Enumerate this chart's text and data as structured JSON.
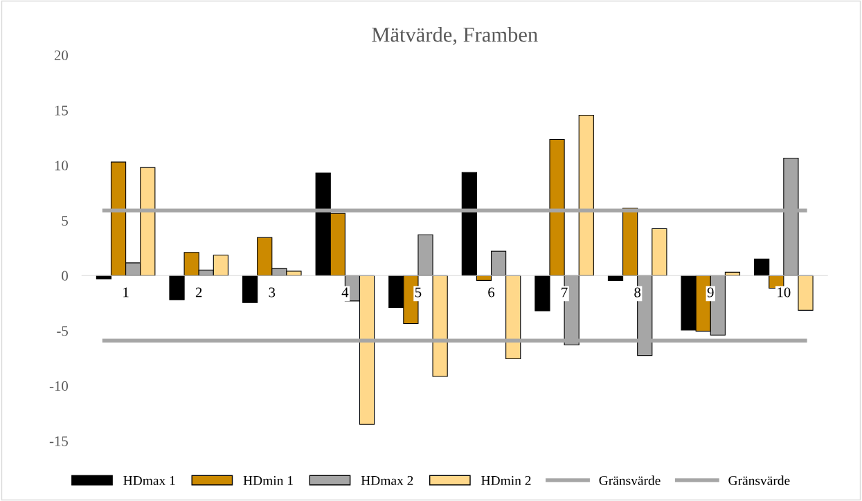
{
  "chart_data": {
    "type": "bar",
    "title": "Mätvärde, Framben",
    "categories": [
      "1",
      "2",
      "3",
      "4",
      "5",
      "6",
      "7",
      "8",
      "9",
      "10"
    ],
    "series": [
      {
        "name": "HDmax 1",
        "color": "#000000",
        "values": [
          -0.3,
          -2.2,
          -2.45,
          9.3,
          -2.9,
          9.35,
          -3.2,
          -0.45,
          -4.95,
          1.5
        ]
      },
      {
        "name": "HDmin 1",
        "color": "#cc8a00",
        "values": [
          10.3,
          2.1,
          3.45,
          5.65,
          -4.35,
          -0.45,
          12.35,
          6.1,
          -5.05,
          -1.15
        ]
      },
      {
        "name": "HDmax 2",
        "color": "#a6a6a6",
        "values": [
          1.15,
          0.5,
          0.65,
          -2.3,
          3.7,
          2.2,
          -6.3,
          -7.25,
          -5.4,
          10.65
        ]
      },
      {
        "name": "HDmin 2",
        "color": "#ffd88a",
        "values": [
          9.8,
          1.85,
          0.4,
          -13.5,
          -9.15,
          -7.55,
          14.55,
          4.25,
          0.3,
          -3.15
        ]
      }
    ],
    "ref_lines": [
      {
        "axis": "y",
        "value": 5.9,
        "label": "Gränsvärde",
        "color": "#a6a6a6"
      },
      {
        "axis": "y",
        "value": -5.9,
        "label": "Gränsvärde",
        "color": "#a6a6a6"
      }
    ],
    "ylim": [
      -15,
      20
    ],
    "yticks": [
      -15,
      -10,
      -5,
      0,
      5,
      10,
      15,
      20
    ],
    "grid": false,
    "legend": "bottom"
  }
}
